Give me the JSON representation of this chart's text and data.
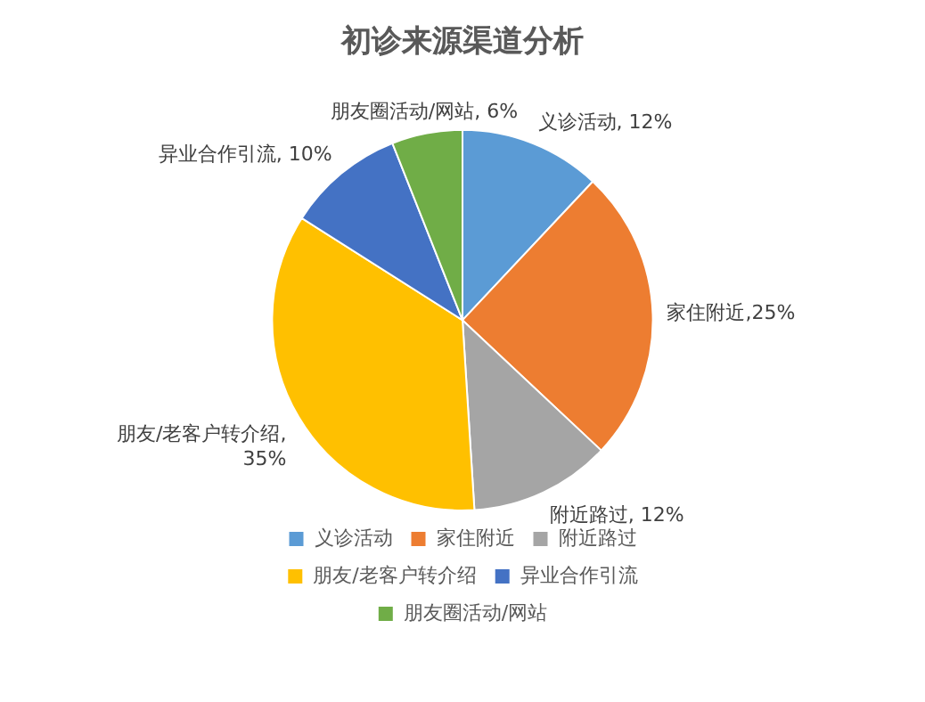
{
  "chart_data": {
    "type": "pie",
    "title": "初诊来源渠道分析",
    "categories": [
      "义诊活动",
      "家住附近",
      "附近路过",
      "朋友/老客户转介绍",
      "异业合作引流",
      "朋友圈活动/网站"
    ],
    "values": [
      12,
      25,
      12,
      35,
      10,
      6
    ],
    "colors": [
      "#5b9bd5",
      "#ed7d31",
      "#a5a5a5",
      "#ffc000",
      "#4472c4",
      "#70ad47"
    ],
    "value_labels": [
      "义诊活动, 12%",
      "家住附近,25%",
      "附近路过, 12%",
      "朋友/老客户转介绍, 35%",
      "异业合作引流, 10%",
      "朋友圈活动/网站, 6%"
    ],
    "legend": "bottom"
  }
}
